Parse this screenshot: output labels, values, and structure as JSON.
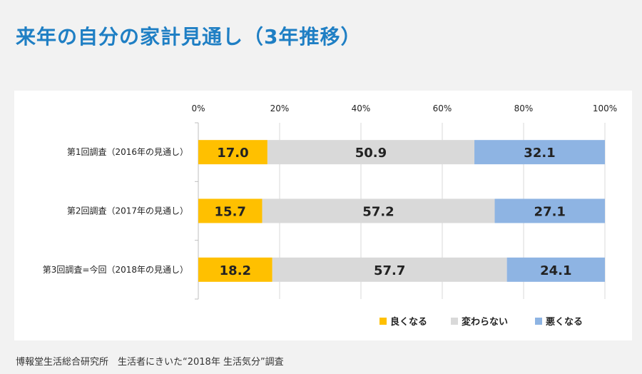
{
  "title": "来年の自分の家計見通し（3年推移）",
  "source": "博報堂生活総合研究所　生活者にきいた“2018年 生活気分”調査",
  "colors": {
    "title": "#1f7fc4",
    "good": "#ffc000",
    "same": "#d9d9d9",
    "bad": "#8eb4e3"
  },
  "chart_data": {
    "type": "bar",
    "orientation": "horizontal",
    "stacked": true,
    "percent": true,
    "categories": [
      "第1回調査（2016年の見通し）",
      "第2回調査（2017年の見通し）",
      "第3回調査=今回（2018年の見通し）"
    ],
    "series": [
      {
        "name": "良くなる",
        "color": "#ffc000",
        "values": [
          17.0,
          15.7,
          18.2
        ]
      },
      {
        "name": "変わらない",
        "color": "#d9d9d9",
        "values": [
          50.9,
          57.2,
          57.7
        ]
      },
      {
        "name": "悪くなる",
        "color": "#8eb4e3",
        "values": [
          32.1,
          27.1,
          24.1
        ]
      }
    ],
    "xlim": [
      0,
      100
    ],
    "xticks": [
      0,
      20,
      40,
      60,
      80,
      100
    ],
    "xtick_labels": [
      "0%",
      "20%",
      "40%",
      "60%",
      "80%",
      "100%"
    ],
    "data_labels": true,
    "grid": true,
    "legend_position": "bottom-right"
  }
}
